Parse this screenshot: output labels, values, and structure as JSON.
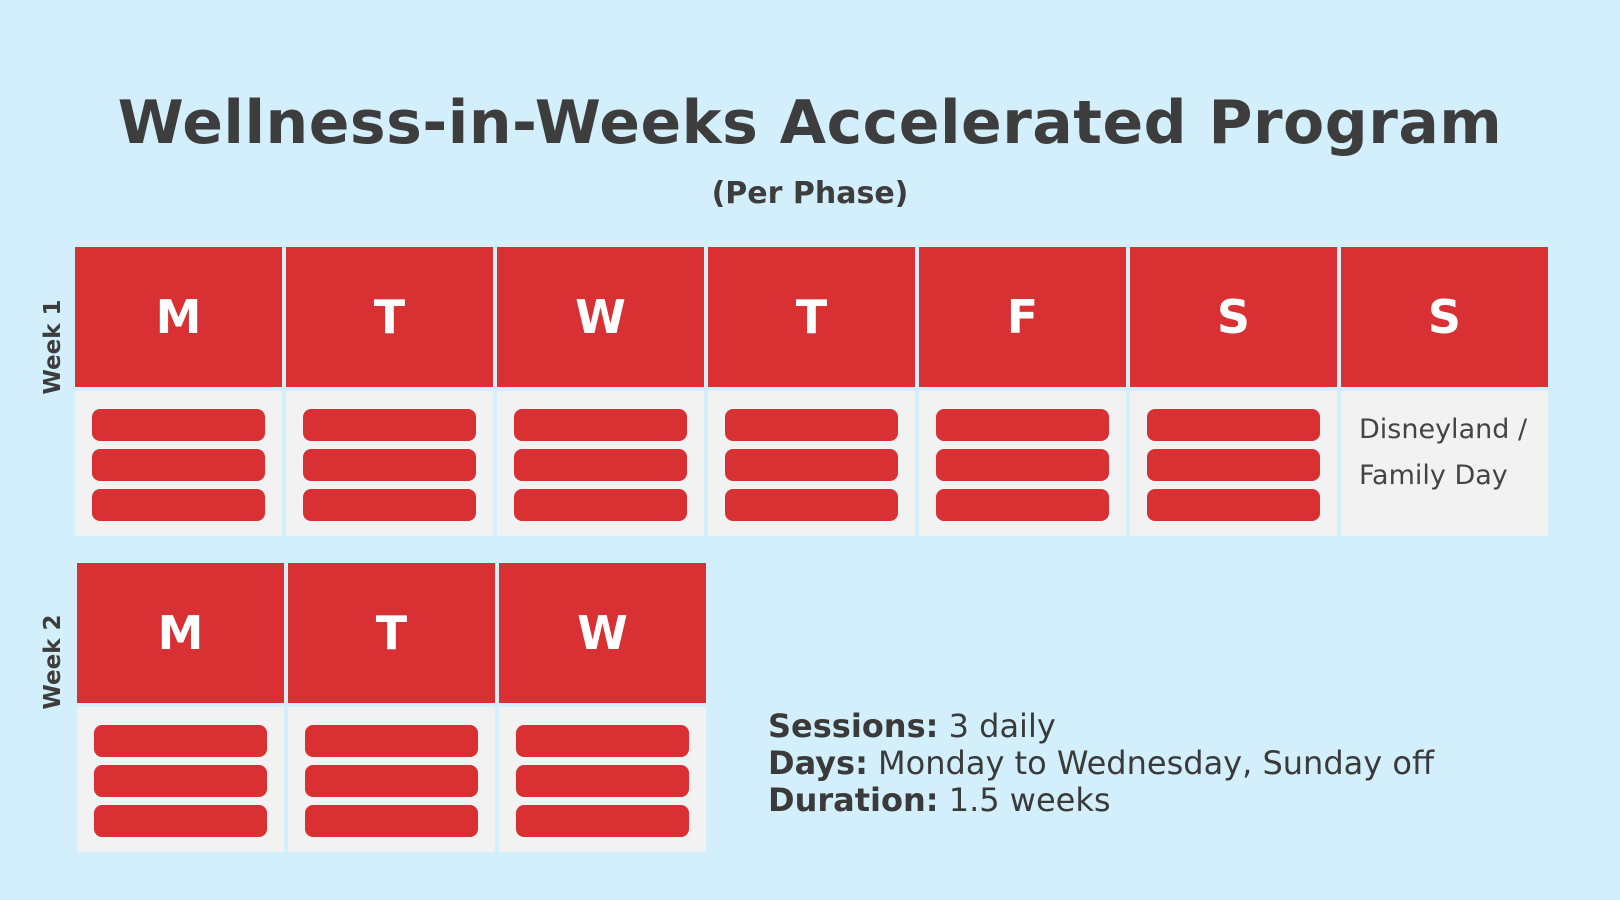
{
  "title": "Wellness-in-Weeks Accelerated Program",
  "subtitle": "(Per Phase)",
  "colors": {
    "background": "#d3effb",
    "accent": "#d93033",
    "cell": "#f2f2f2",
    "text": "#3d3d3d"
  },
  "weeks": [
    {
      "label": "Week 1",
      "days": [
        {
          "letter": "M",
          "sessions": 3
        },
        {
          "letter": "T",
          "sessions": 3
        },
        {
          "letter": "W",
          "sessions": 3
        },
        {
          "letter": "T",
          "sessions": 3
        },
        {
          "letter": "F",
          "sessions": 3
        },
        {
          "letter": "S",
          "sessions": 3
        },
        {
          "letter": "S",
          "sessions": 0,
          "note_line1": "Disneyland /",
          "note_line2": "Family Day"
        }
      ]
    },
    {
      "label": "Week 2",
      "days": [
        {
          "letter": "M",
          "sessions": 3
        },
        {
          "letter": "T",
          "sessions": 3
        },
        {
          "letter": "W",
          "sessions": 3
        }
      ]
    }
  ],
  "info": {
    "sessions_key": "Sessions:",
    "sessions_value": " 3 daily",
    "days_key": "Days:",
    "days_value": " Monday to Wednesday, Sunday off",
    "duration_key": "Duration:",
    "duration_value": " 1.5 weeks"
  }
}
